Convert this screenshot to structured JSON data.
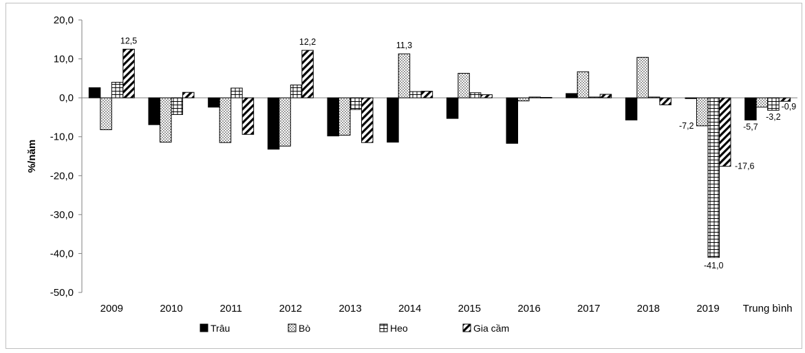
{
  "chart_data": {
    "type": "bar",
    "ylabel": "%/năm",
    "xlabel": "",
    "ylim": [
      -50,
      20
    ],
    "yticks": [
      20,
      10,
      0,
      -10,
      -20,
      -30,
      -40,
      -50
    ],
    "ytick_labels": [
      "20,0",
      "10,0",
      "0,0",
      "-10,0",
      "-20,0",
      "-30,0",
      "-40,0",
      "-50,0"
    ],
    "grid": false,
    "legend_position": "bottom",
    "categories": [
      "2009",
      "2010",
      "2011",
      "2012",
      "2013",
      "2014",
      "2015",
      "2016",
      "2017",
      "2018",
      "2019",
      "Trung bình"
    ],
    "series": [
      {
        "name": "Trâu",
        "pattern": "solid",
        "values": [
          2.6,
          -6.9,
          -2.4,
          -13.2,
          -9.8,
          -11.4,
          -5.3,
          -11.7,
          1.1,
          -5.7,
          -0.2,
          -5.7
        ]
      },
      {
        "name": "Bò",
        "pattern": "dots",
        "values": [
          -8.2,
          -11.4,
          -11.5,
          -12.4,
          -9.6,
          11.3,
          6.3,
          -0.8,
          6.7,
          10.4,
          -7.2,
          -2.4
        ]
      },
      {
        "name": "Heo",
        "pattern": "grid",
        "values": [
          4.0,
          -4.3,
          2.5,
          3.3,
          -3.0,
          1.6,
          1.3,
          0.2,
          0.2,
          0.2,
          -41.0,
          -3.2
        ]
      },
      {
        "name": "Gia cầm",
        "pattern": "diagonal",
        "values": [
          12.5,
          1.4,
          -9.4,
          12.2,
          -11.5,
          1.7,
          0.8,
          0.1,
          0.9,
          -1.8,
          -17.6,
          -0.9
        ]
      }
    ],
    "data_labels": [
      {
        "category": 0,
        "series": 3,
        "text": "12,5"
      },
      {
        "category": 3,
        "series": 3,
        "text": "12,2"
      },
      {
        "category": 5,
        "series": 1,
        "text": "11,3"
      },
      {
        "category": 10,
        "series": 1,
        "text": "-7,2"
      },
      {
        "category": 10,
        "series": 2,
        "text": "-41,0"
      },
      {
        "category": 10,
        "series": 3,
        "text": "-17,6"
      },
      {
        "category": 11,
        "series": 0,
        "text": "-5,7"
      },
      {
        "category": 11,
        "series": 2,
        "text": "-3,2"
      },
      {
        "category": 11,
        "series": 3,
        "text": "-0,9"
      }
    ],
    "colors": {
      "bar_fill": "#000000",
      "bar_stroke": "#000000",
      "axis": "#7f7f7f"
    }
  }
}
